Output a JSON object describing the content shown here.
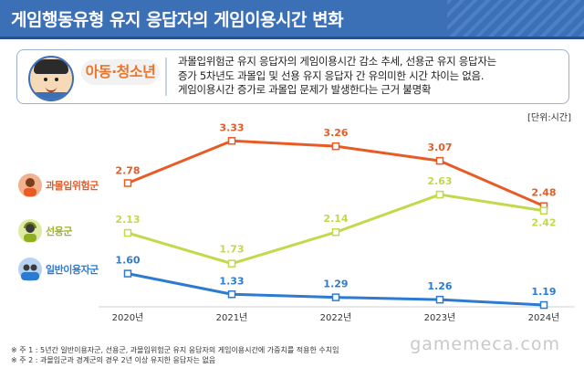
{
  "header": {
    "title": "게임행동유형 유지 응답자의 게임이용시간 변화"
  },
  "summary": {
    "group_label": "아동·청소년",
    "lines": [
      "과몰입위험군 유지 응답자의 게임이용시간 감소 추세, 선용군 유지 응답자는",
      "증가 5차년도 과몰입 및 선용 유지 응답자 간 유의미한 시간 차이는 없음.",
      "게임이용시간 증가로 과몰입 문제가 발생한다는 근거 불명확"
    ]
  },
  "unit_label": "[단위:시간]",
  "colors": {
    "orange": "#e85b25",
    "lime": "#c2d94a",
    "blue": "#2d7bd0",
    "title_bg": "#3b6fb6"
  },
  "chart_data": {
    "type": "line",
    "x": [
      "2020년",
      "2021년",
      "2022년",
      "2023년",
      "2024년"
    ],
    "ylim": [
      1.0,
      3.5
    ],
    "series": [
      {
        "name": "과몰입위험군",
        "color": "#e85b25",
        "values": [
          2.78,
          3.33,
          3.26,
          3.07,
          2.48
        ],
        "labels": [
          "2.78",
          "3.33",
          "3.26",
          "3.07",
          "2.48"
        ],
        "icon": "person-warning-icon"
      },
      {
        "name": "선용군",
        "color": "#c2d94a",
        "values": [
          2.13,
          1.73,
          2.14,
          2.63,
          2.42
        ],
        "labels": [
          "2.13",
          "1.73",
          "2.14",
          "2.63",
          "2.42"
        ],
        "icon": "person-headset-icon"
      },
      {
        "name": "일반이용자군",
        "color": "#2d7bd0",
        "values": [
          1.6,
          1.33,
          1.29,
          1.26,
          1.19
        ],
        "labels": [
          "1.60",
          "1.33",
          "1.29",
          "1.26",
          "1.19"
        ],
        "icon": "person-group-icon"
      }
    ]
  },
  "notes": [
    "※ 주 1 : 5년간 일반이용자군, 선용군, 과몰입위험군 유지 응답자의 게임이용시간에 가중치를 적용한 수치임",
    "※ 주 2 : 과몰입군과 경계군의 경우 2년 이상 유지한 응답자는 없음"
  ],
  "watermark": "gamemeca.com"
}
